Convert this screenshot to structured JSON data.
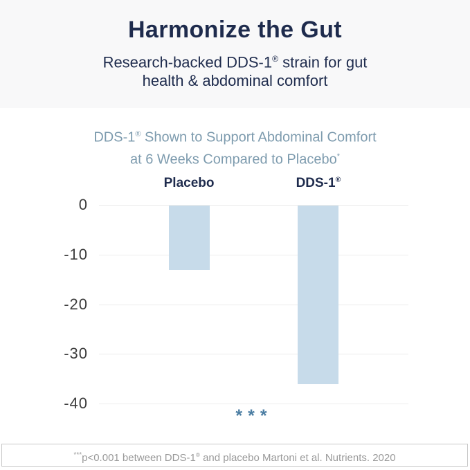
{
  "header": {
    "title": "Harmonize the Gut",
    "subtitle_line1": "Research-backed DDS-1® strain for gut",
    "subtitle_line2": "health & abdominal comfort"
  },
  "chart": {
    "title_line1": "DDS-1® Shown to Support Abdominal Comfort",
    "title_line2": "at 6 Weeks Compared to Placebo",
    "title_superscript": "*",
    "significance_marker": "***"
  },
  "chart_data": {
    "type": "bar",
    "title": "DDS-1® Shown to Support Abdominal Comfort at 6 Weeks Compared to Placebo*",
    "categories": [
      "Placebo",
      "DDS-1®"
    ],
    "values": [
      -13,
      -36
    ],
    "xlabel": "",
    "ylabel": "",
    "ylim": [
      -40,
      0
    ],
    "yticks": [
      0,
      -10,
      -20,
      -30,
      -40
    ],
    "grid": true,
    "legend": false,
    "annotations": [
      "***"
    ],
    "bar_color": "#c7dbea"
  },
  "footer": {
    "superscript": "***",
    "text": "p<0.001 between DDS-1® and placebo Martoni et al. Nutrients. 2020"
  },
  "colors": {
    "navy": "#1e2b4d",
    "steel_blue_title": "#7d9bae",
    "bar_fill": "#c7dbea",
    "gridline": "#ececec",
    "tick_label": "#3d3d3d",
    "significance": "#4c7ea3",
    "footer_text": "#9a9a9a",
    "footer_border": "#c6c6c6",
    "header_background": "#f8f8f9"
  }
}
